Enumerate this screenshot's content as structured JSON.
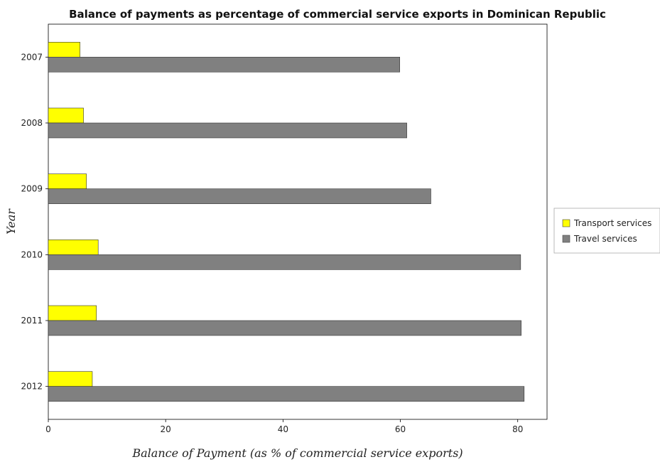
{
  "chart_data": {
    "type": "bar",
    "orientation": "horizontal",
    "title": "Balance of payments as percentage of commercial service exports in Dominican Republic",
    "xlabel": "Balance of Payment (as % of commercial service exports)",
    "ylabel": "Year",
    "categories": [
      "2007",
      "2008",
      "2009",
      "2010",
      "2011",
      "2012"
    ],
    "series": [
      {
        "name": "Transport services",
        "color": "#ffff00",
        "values": [
          5.4,
          6.0,
          6.5,
          8.5,
          8.2,
          7.5
        ]
      },
      {
        "name": "Travel services",
        "color": "#808080",
        "values": [
          59.9,
          61.1,
          65.2,
          80.5,
          80.6,
          81.1
        ]
      }
    ],
    "xlim": [
      0,
      85
    ],
    "xticks": [
      0,
      20,
      40,
      60,
      80
    ],
    "grid": false,
    "legend_position": "right"
  }
}
